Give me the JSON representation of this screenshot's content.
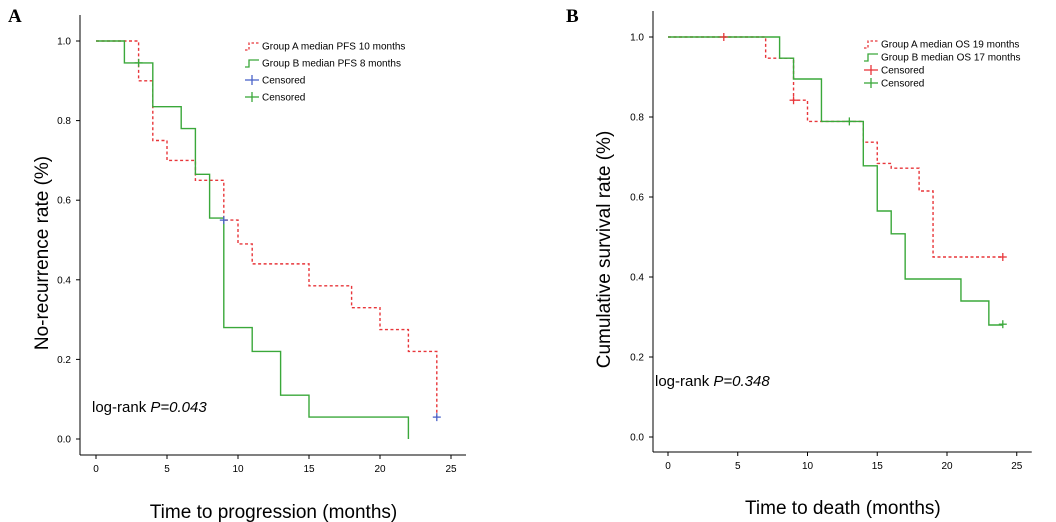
{
  "figure": {
    "panel_labels": [
      "A",
      "B"
    ]
  },
  "chart_data": [
    {
      "type": "line",
      "subtype": "kaplan-meier step",
      "panel": "A",
      "xlabel": "Time to progression (months)",
      "ylabel": "No-recurrence rate (%)",
      "xlim": [
        0,
        25
      ],
      "ylim": [
        0,
        1
      ],
      "xticks": [
        0,
        5,
        10,
        15,
        20,
        25
      ],
      "yticks": [
        "0.0",
        "0.2",
        "0.4",
        "0.6",
        "0.8",
        "1.0"
      ],
      "grid": false,
      "legend_position": "top-right",
      "note_prefix": "log-rank",
      "note_value": "P=0.043",
      "series": [
        {
          "name": "Group A median PFS 10 months",
          "color": "#e8363a",
          "dash": true,
          "steps": [
            [
              0,
              1
            ],
            [
              3,
              0.9
            ],
            [
              4,
              0.75
            ],
            [
              5,
              0.7
            ],
            [
              7,
              0.65
            ],
            [
              9,
              0.55
            ],
            [
              10,
              0.49
            ],
            [
              11,
              0.44
            ],
            [
              15,
              0.385
            ],
            [
              18,
              0.33
            ],
            [
              20,
              0.275
            ],
            [
              22,
              0.22
            ],
            [
              24,
              0.055
            ]
          ],
          "x_end": 24
        },
        {
          "name": "Group B median PFS 8 months",
          "color": "#3aa83a",
          "dash": false,
          "steps": [
            [
              0,
              1
            ],
            [
              2,
              0.945
            ],
            [
              4,
              0.835
            ],
            [
              6,
              0.78
            ],
            [
              7,
              0.665
            ],
            [
              8,
              0.555
            ],
            [
              9,
              0.445
            ],
            [
              9,
              0.28
            ],
            [
              11,
              0.22
            ],
            [
              13,
              0.11
            ],
            [
              15,
              0.055
            ],
            [
              22,
              0
            ]
          ],
          "x_end": 22
        }
      ],
      "censored": [
        {
          "name": "Censored",
          "color": "#4a63c8",
          "points": [
            [
              9,
              0.55
            ],
            [
              24,
              0.055
            ]
          ]
        },
        {
          "name": "Censored",
          "color": "#3aa83a",
          "points": [
            [
              3,
              0.945
            ]
          ]
        }
      ]
    },
    {
      "type": "line",
      "subtype": "kaplan-meier step",
      "panel": "B",
      "xlabel": "Time to death (months)",
      "ylabel": "Cumulative survival rate (%)",
      "xlim": [
        0,
        25
      ],
      "ylim": [
        0,
        1
      ],
      "xticks": [
        0,
        5,
        10,
        15,
        20,
        25
      ],
      "yticks": [
        "0.0",
        "0.2",
        "0.4",
        "0.6",
        "0.8",
        "1.0"
      ],
      "grid": false,
      "legend_position": "top-right",
      "note_prefix": "log-rank",
      "note_value": "P=0.348",
      "series": [
        {
          "name": "Group A median OS 19 months",
          "color": "#e8363a",
          "dash": true,
          "steps": [
            [
              0,
              1
            ],
            [
              7,
              0.947
            ],
            [
              9,
              0.842
            ],
            [
              10,
              0.789
            ],
            [
              14,
              0.737
            ],
            [
              15,
              0.684
            ],
            [
              16,
              0.672
            ],
            [
              18,
              0.615
            ],
            [
              19,
              0.45
            ]
          ],
          "x_end": 24
        },
        {
          "name": "Group B median OS 17 months",
          "color": "#3aa83a",
          "dash": false,
          "steps": [
            [
              0,
              1
            ],
            [
              8,
              0.947
            ],
            [
              9,
              0.895
            ],
            [
              11,
              0.789
            ],
            [
              14,
              0.678
            ],
            [
              15,
              0.565
            ],
            [
              16,
              0.508
            ],
            [
              17,
              0.395
            ],
            [
              21,
              0.34
            ],
            [
              23,
              0.28
            ]
          ],
          "x_end": 24
        }
      ],
      "censored": [
        {
          "name": "Censored",
          "color": "#e8363a",
          "points": [
            [
              4,
              1.0
            ],
            [
              9,
              0.842
            ],
            [
              24,
              0.45
            ]
          ]
        },
        {
          "name": "Censored",
          "color": "#3aa83a",
          "points": [
            [
              13,
              0.789
            ],
            [
              24,
              0.282
            ]
          ]
        }
      ]
    }
  ]
}
